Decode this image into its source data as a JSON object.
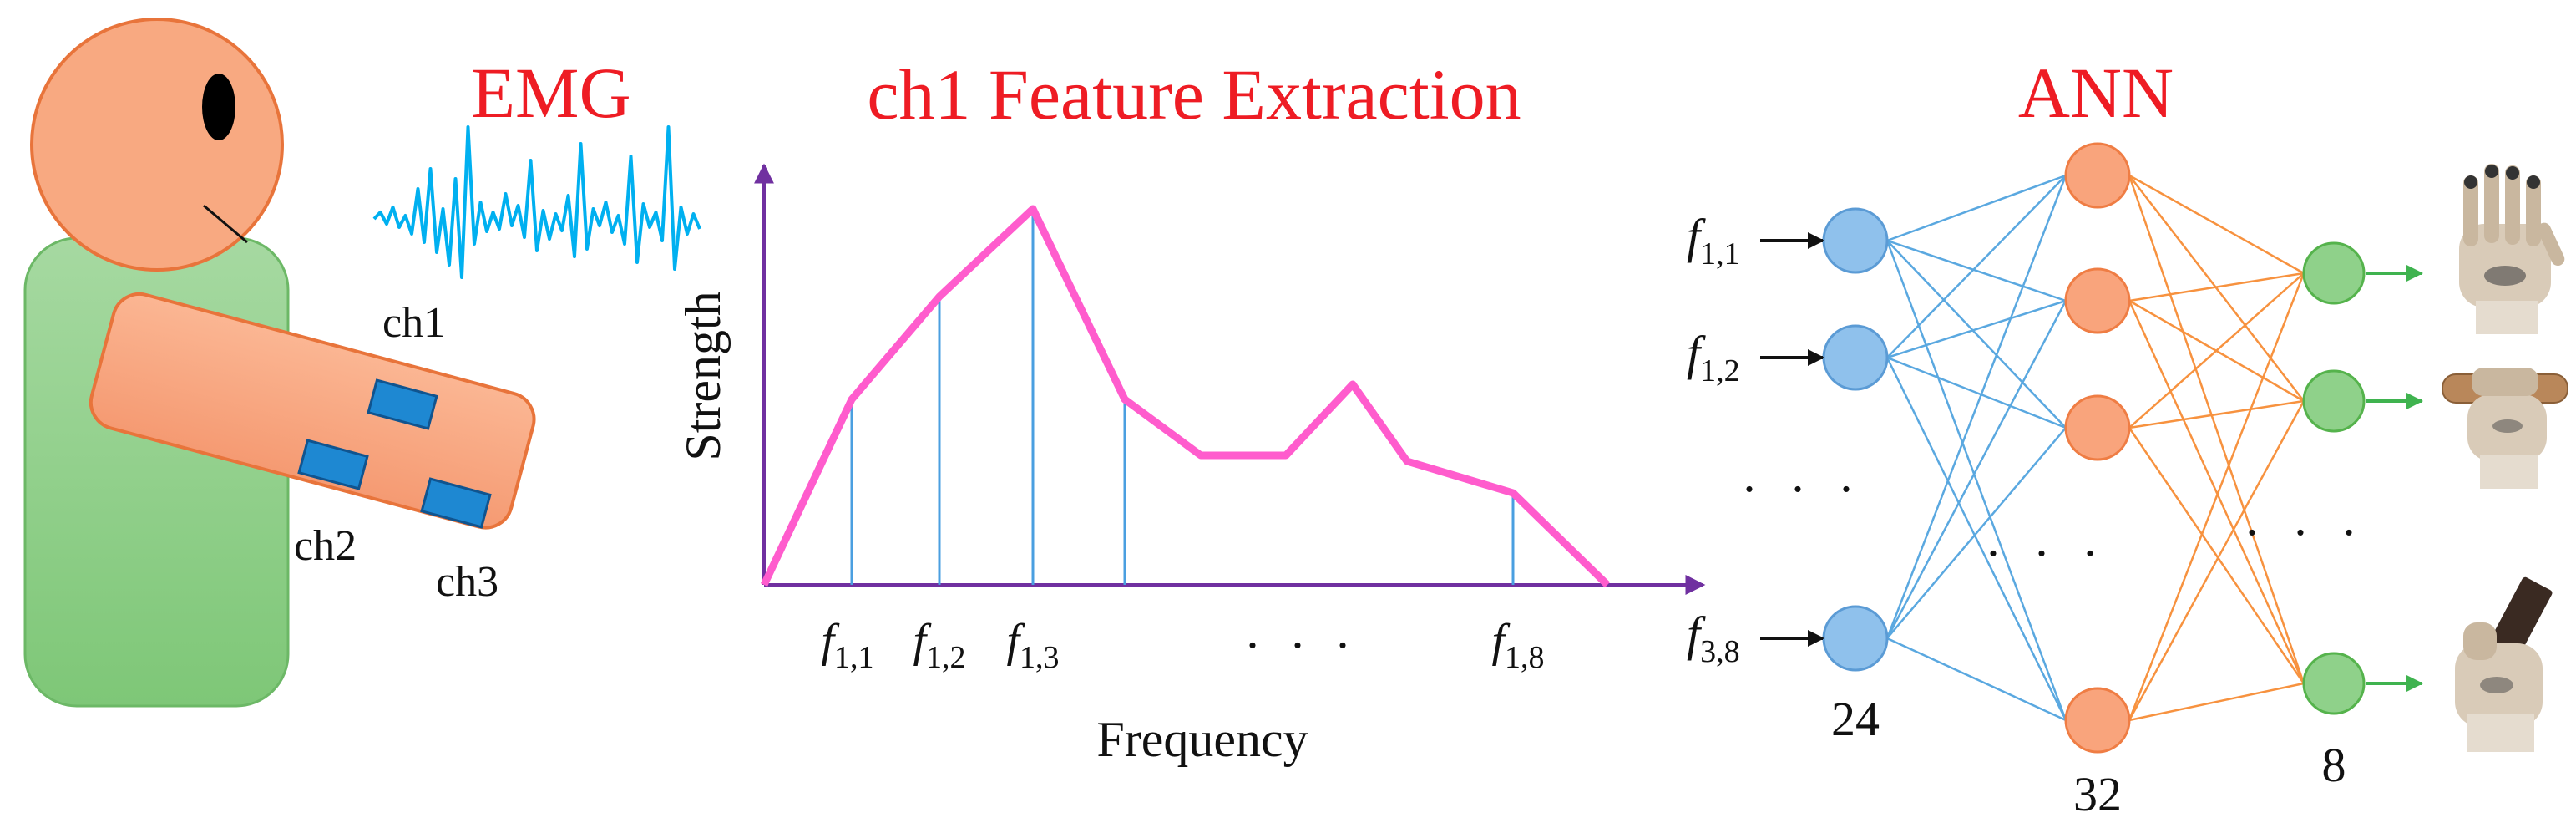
{
  "colors": {
    "title_red": "#ee1c24",
    "emg_signal": "#00b0f0",
    "curve_pink": "#ff5ccd",
    "axis_purple": "#7030a0",
    "skin": "#f8a981",
    "skin_stroke": "#e8743b",
    "body_green": "#92d08c",
    "electrode_blue": "#1e88d2",
    "input_node": "#8fc1ec",
    "hidden_node": "#f9a47c",
    "output_node": "#8fd18a",
    "conn_blue": "#5aa8e0",
    "conn_orange": "#f7923f",
    "arrow_green": "#3fb34f"
  },
  "emg": {
    "title": "EMG",
    "channels": [
      "ch1",
      "ch2",
      "ch3"
    ]
  },
  "feature": {
    "title": "ch1 Feature Extraction",
    "ylabel": "Strength",
    "xlabel": "Frequency",
    "dots": ". . .",
    "feature_base": "f",
    "ticks": [
      {
        "sub": "1,1"
      },
      {
        "sub": "1,2"
      },
      {
        "sub": "1,3"
      },
      {
        "sub": "1,8"
      }
    ]
  },
  "ann": {
    "title": "ANN",
    "input_labels": [
      {
        "base": "f",
        "sub": "1,1"
      },
      {
        "base": "f",
        "sub": "1,2"
      },
      {
        "base": "f",
        "sub": "3,8"
      }
    ],
    "input_dots": ". . .",
    "hidden_dots": ". . .",
    "output_dots": ". . .",
    "layer_sizes": {
      "input": "24",
      "hidden": "32",
      "output": "8"
    }
  },
  "output_images": [
    {
      "icon": "open-hand-icon"
    },
    {
      "icon": "cylinder-grasp-icon"
    },
    {
      "icon": "card-pinch-icon"
    }
  ]
}
